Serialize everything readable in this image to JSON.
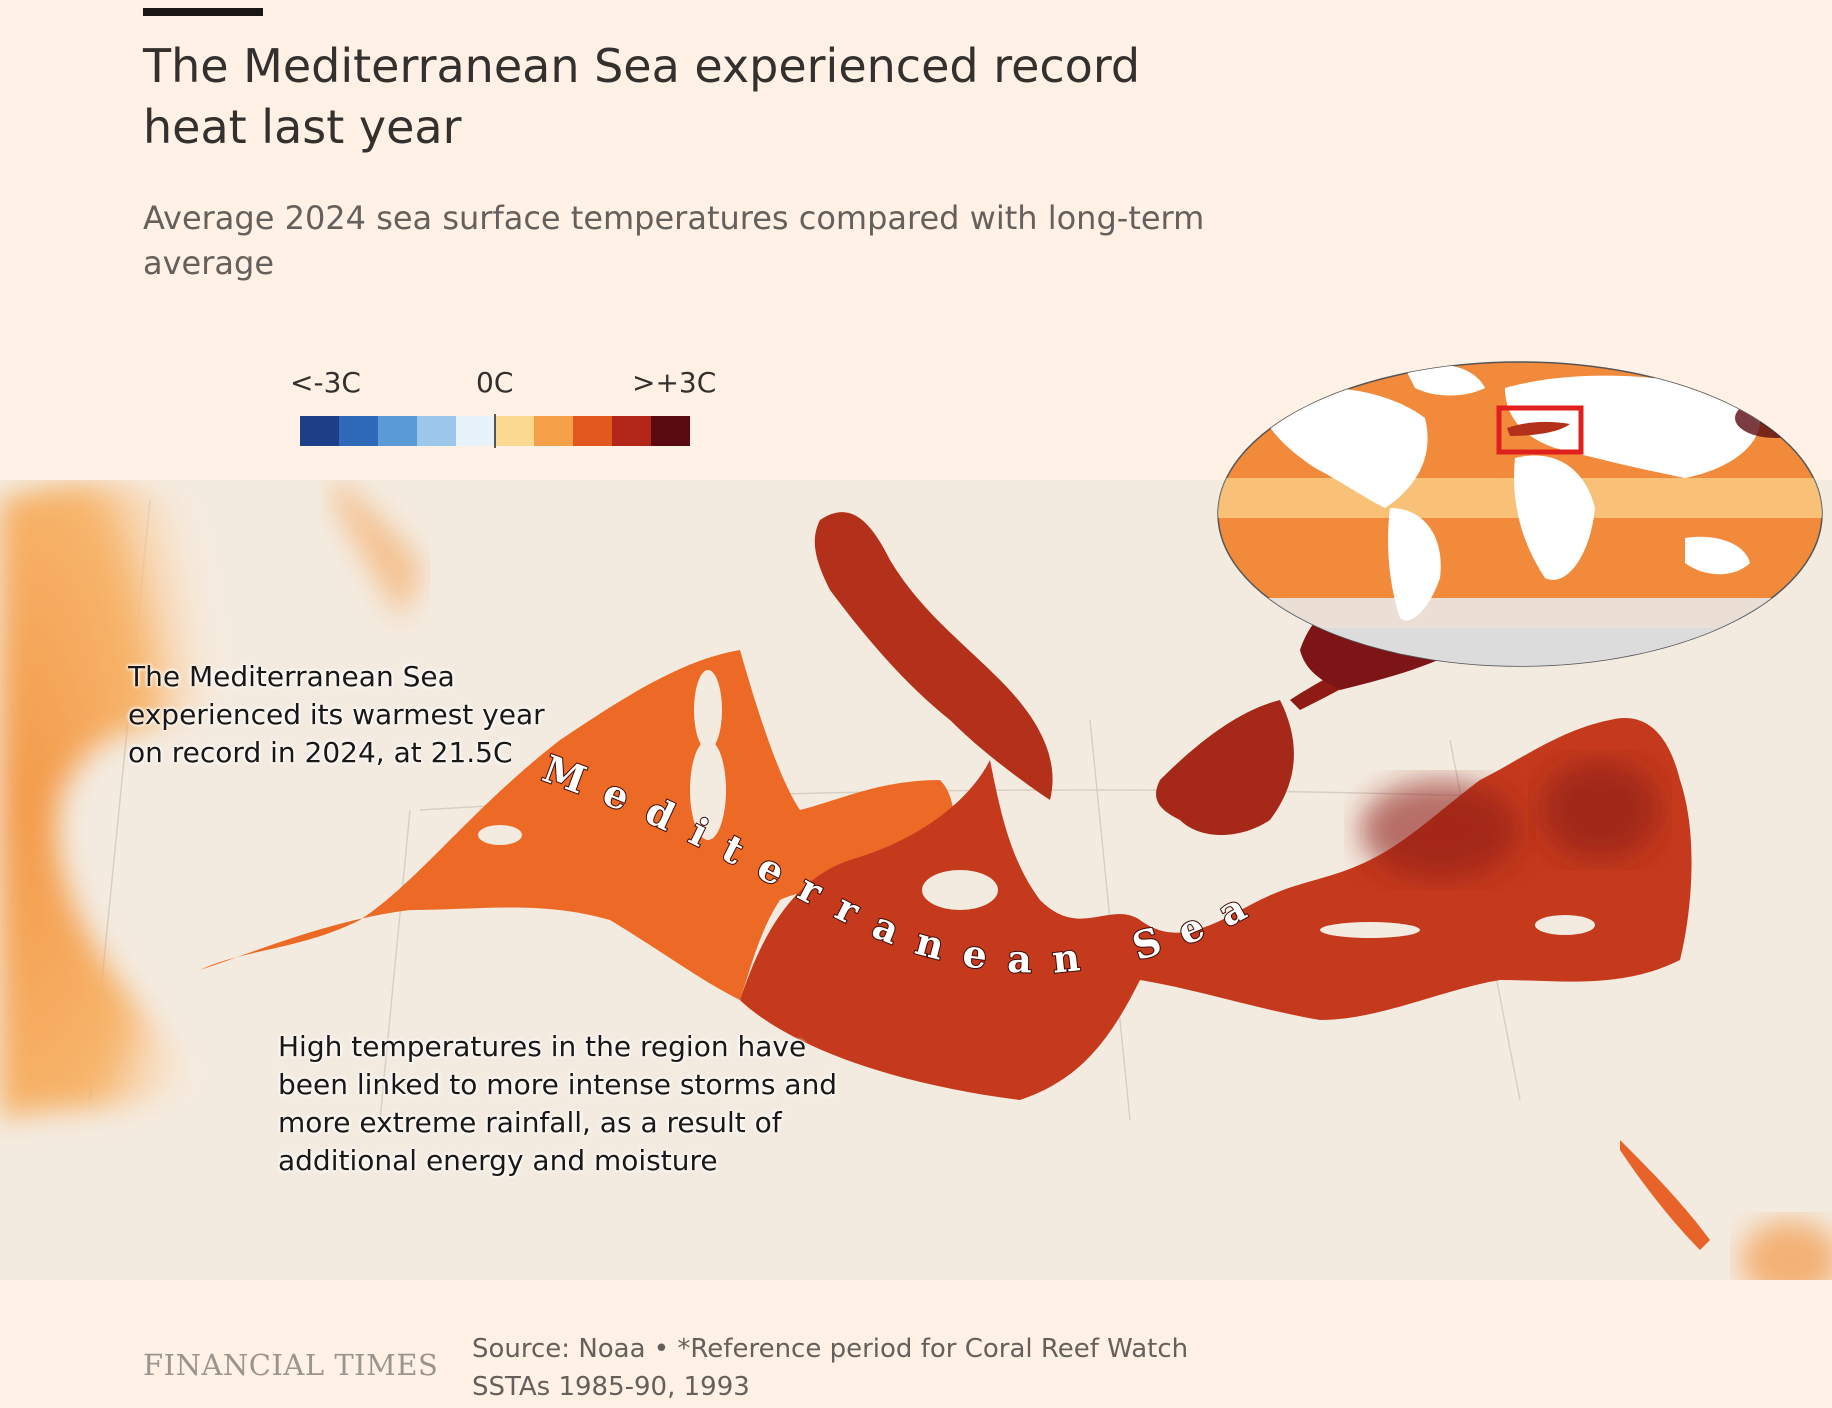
{
  "header": {
    "title": "The Mediterranean Sea experienced record heat last year",
    "subtitle": "Average 2024 sea surface temperatures compared with long-term average"
  },
  "legend": {
    "min_label": "<-3C",
    "mid_label": "0C",
    "max_label": ">+3C",
    "colors": [
      "#1d3f88",
      "#2f6ab8",
      "#5a9ad6",
      "#9cc6ea",
      "#e8f2fa",
      "#fbd990",
      "#f6a04a",
      "#e1581f",
      "#b2261a",
      "#5a0b12"
    ]
  },
  "map": {
    "sea_label": "Mediterranean Sea",
    "annotations": [
      "The Mediterranean Sea experienced its warmest year on record in 2024, at 21.5C",
      "High temperatures in the region have been linked to more intense storms and more extreme rainfall, as a result of additional energy and moisture"
    ],
    "colors": {
      "land": "#f4ebe0",
      "west_sea": "#ec6a26",
      "east_sea": "#c53a1d",
      "black_sea": "#7d1416",
      "atlantic": "#f39a4a",
      "inset_highlight": "#e0201c"
    }
  },
  "footer": {
    "logo": "FINANCIAL TIMES",
    "source": "Source: Noaa • *Reference period for Coral Reef Watch SSTAs 1985-90, 1993"
  }
}
